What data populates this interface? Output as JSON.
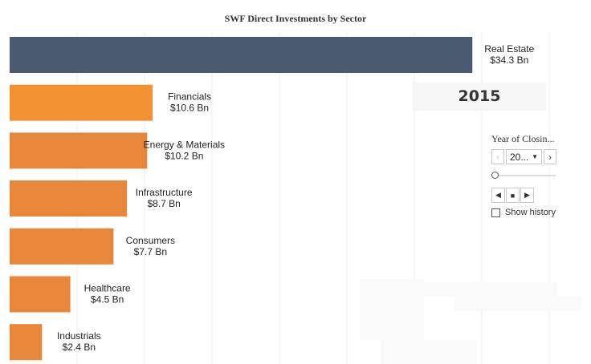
{
  "chart_data": {
    "type": "bar",
    "orientation": "horizontal",
    "title": "SWF Direct Investments by Sector",
    "categories": [
      "Real Estate",
      "Financials",
      "Energy & Materials",
      "Infrastructure",
      "Consumers",
      "Healthcare",
      "Industrials"
    ],
    "values": [
      34.3,
      10.6,
      10.2,
      8.7,
      7.7,
      4.5,
      2.4
    ],
    "value_labels": [
      "$34.3 Bn",
      "$10.6 Bn",
      "$10.2 Bn",
      "$8.7 Bn",
      "$7.7 Bn",
      "$4.5 Bn",
      "$2.4 Bn"
    ],
    "unit": "Bn",
    "xlim": [
      0,
      40
    ],
    "grid": true,
    "highlight_category": "Real Estate",
    "colors": {
      "highlight": "#4a5a70",
      "default": "#e8873a",
      "first_default": "#f39232"
    }
  },
  "year_display": "2015",
  "filter": {
    "title": "Year of Closin...",
    "selected": "20...",
    "prev_icon": "chevron-left-icon",
    "next_icon": "chevron-right-icon",
    "dropdown_icon": "caret-down-icon",
    "playback": [
      "step-back-icon",
      "stop-icon",
      "play-icon"
    ],
    "show_history_label": "Show history"
  }
}
